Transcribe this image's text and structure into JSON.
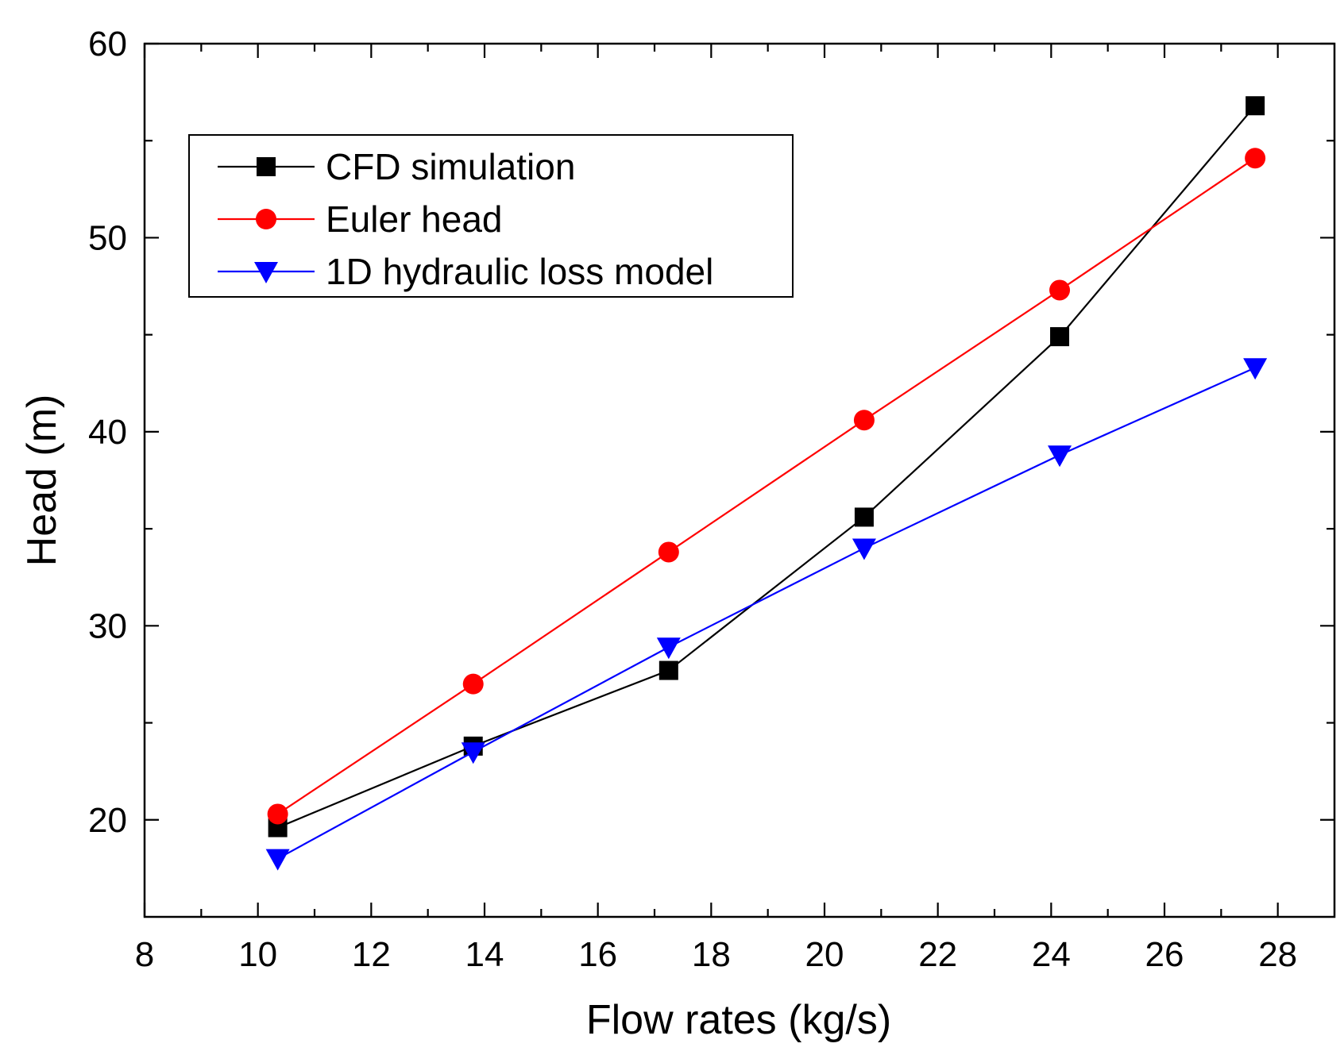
{
  "chart_data": {
    "type": "line",
    "title": "",
    "xlabel": "Flow rates  (kg/s)",
    "ylabel": "Head (m)",
    "xlim": [
      8,
      29
    ],
    "ylim": [
      15,
      60
    ],
    "xticks": [
      8,
      10,
      12,
      14,
      16,
      18,
      20,
      22,
      24,
      26,
      28
    ],
    "xtick_labels": [
      "8",
      "10",
      "12",
      "14",
      "16",
      "18",
      "20",
      "22",
      "24",
      "26",
      "28"
    ],
    "xminor": [
      9,
      11,
      13,
      15,
      17,
      19,
      21,
      23,
      25,
      27
    ],
    "yticks": [
      20,
      30,
      40,
      50,
      60
    ],
    "ytick_labels": [
      "20",
      "30",
      "40",
      "50",
      "60"
    ],
    "yminor": [
      25,
      35,
      45,
      55
    ],
    "grid": false,
    "legend_position": "top-left",
    "series": [
      {
        "name": "CFD simulation",
        "color": "#000000",
        "marker": "square",
        "x": [
          10.35,
          13.8,
          17.25,
          20.7,
          24.15,
          27.6
        ],
        "y": [
          19.6,
          23.8,
          27.7,
          35.6,
          44.9,
          56.8
        ]
      },
      {
        "name": "Euler head",
        "color": "#ff0000",
        "marker": "circle",
        "x": [
          10.35,
          13.8,
          17.25,
          20.7,
          24.15,
          27.6
        ],
        "y": [
          20.3,
          27.0,
          33.8,
          40.6,
          47.3,
          54.1
        ]
      },
      {
        "name": "1D hydraulic loss model",
        "color": "#0000ff",
        "marker": "triangle-down",
        "x": [
          10.35,
          13.8,
          17.25,
          20.7,
          24.15,
          27.6
        ],
        "y": [
          18.0,
          23.5,
          28.9,
          34.0,
          38.8,
          43.3
        ]
      }
    ]
  }
}
